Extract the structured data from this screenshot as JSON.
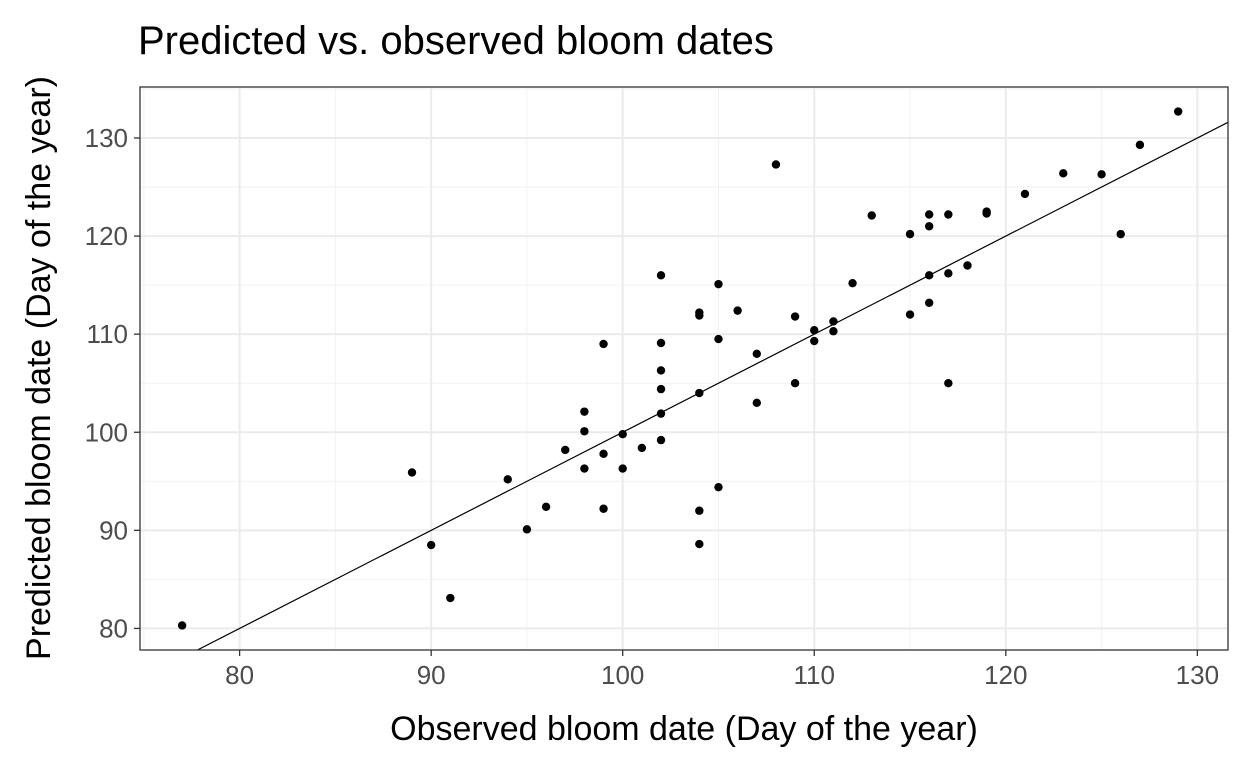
{
  "chart_data": {
    "type": "scatter",
    "title": "Predicted vs. observed bloom dates",
    "xlabel": "Observed bloom date (Day of the year)",
    "ylabel": "Predicted bloom date (Day of the year)",
    "xlim": [
      74.8,
      131.6
    ],
    "ylim": [
      77.8,
      135.2
    ],
    "x_ticks": [
      80,
      90,
      100,
      110,
      120,
      130
    ],
    "y_ticks": [
      80,
      90,
      100,
      110,
      120,
      130
    ],
    "grid": true,
    "reference_line": {
      "intercept": 0,
      "slope": 1
    },
    "points": [
      [
        77,
        80.3
      ],
      [
        89,
        95.9
      ],
      [
        90,
        88.5
      ],
      [
        91,
        83.1
      ],
      [
        94,
        95.2
      ],
      [
        95,
        90.1
      ],
      [
        96,
        92.4
      ],
      [
        97,
        98.2
      ],
      [
        98,
        102.1
      ],
      [
        98,
        100.1
      ],
      [
        98,
        96.3
      ],
      [
        99,
        109.0
      ],
      [
        99,
        97.8
      ],
      [
        99,
        92.2
      ],
      [
        100,
        99.8
      ],
      [
        100,
        96.3
      ],
      [
        101,
        98.4
      ],
      [
        102,
        116.0
      ],
      [
        102,
        109.1
      ],
      [
        102,
        106.3
      ],
      [
        102,
        104.4
      ],
      [
        102,
        101.9
      ],
      [
        102,
        99.2
      ],
      [
        104,
        112.2
      ],
      [
        104,
        111.9
      ],
      [
        104,
        104.0
      ],
      [
        104,
        92.0
      ],
      [
        104,
        88.6
      ],
      [
        105,
        115.1
      ],
      [
        105,
        109.5
      ],
      [
        105,
        94.4
      ],
      [
        106,
        112.4
      ],
      [
        107,
        108.0
      ],
      [
        107,
        103.0
      ],
      [
        108,
        127.3
      ],
      [
        109,
        111.8
      ],
      [
        109,
        105.0
      ],
      [
        110,
        110.4
      ],
      [
        110,
        109.3
      ],
      [
        111,
        111.3
      ],
      [
        111,
        110.3
      ],
      [
        112,
        115.2
      ],
      [
        113,
        122.1
      ],
      [
        115,
        120.2
      ],
      [
        115,
        112.0
      ],
      [
        116,
        122.2
      ],
      [
        116,
        121.0
      ],
      [
        116,
        116.0
      ],
      [
        116,
        113.2
      ],
      [
        117,
        122.2
      ],
      [
        117,
        116.2
      ],
      [
        117,
        105.0
      ],
      [
        118,
        117.0
      ],
      [
        119,
        122.5
      ],
      [
        119,
        122.3
      ],
      [
        121,
        124.3
      ],
      [
        123,
        126.4
      ],
      [
        125,
        126.3
      ],
      [
        126,
        120.2
      ],
      [
        127,
        129.3
      ],
      [
        129,
        132.7
      ]
    ]
  }
}
